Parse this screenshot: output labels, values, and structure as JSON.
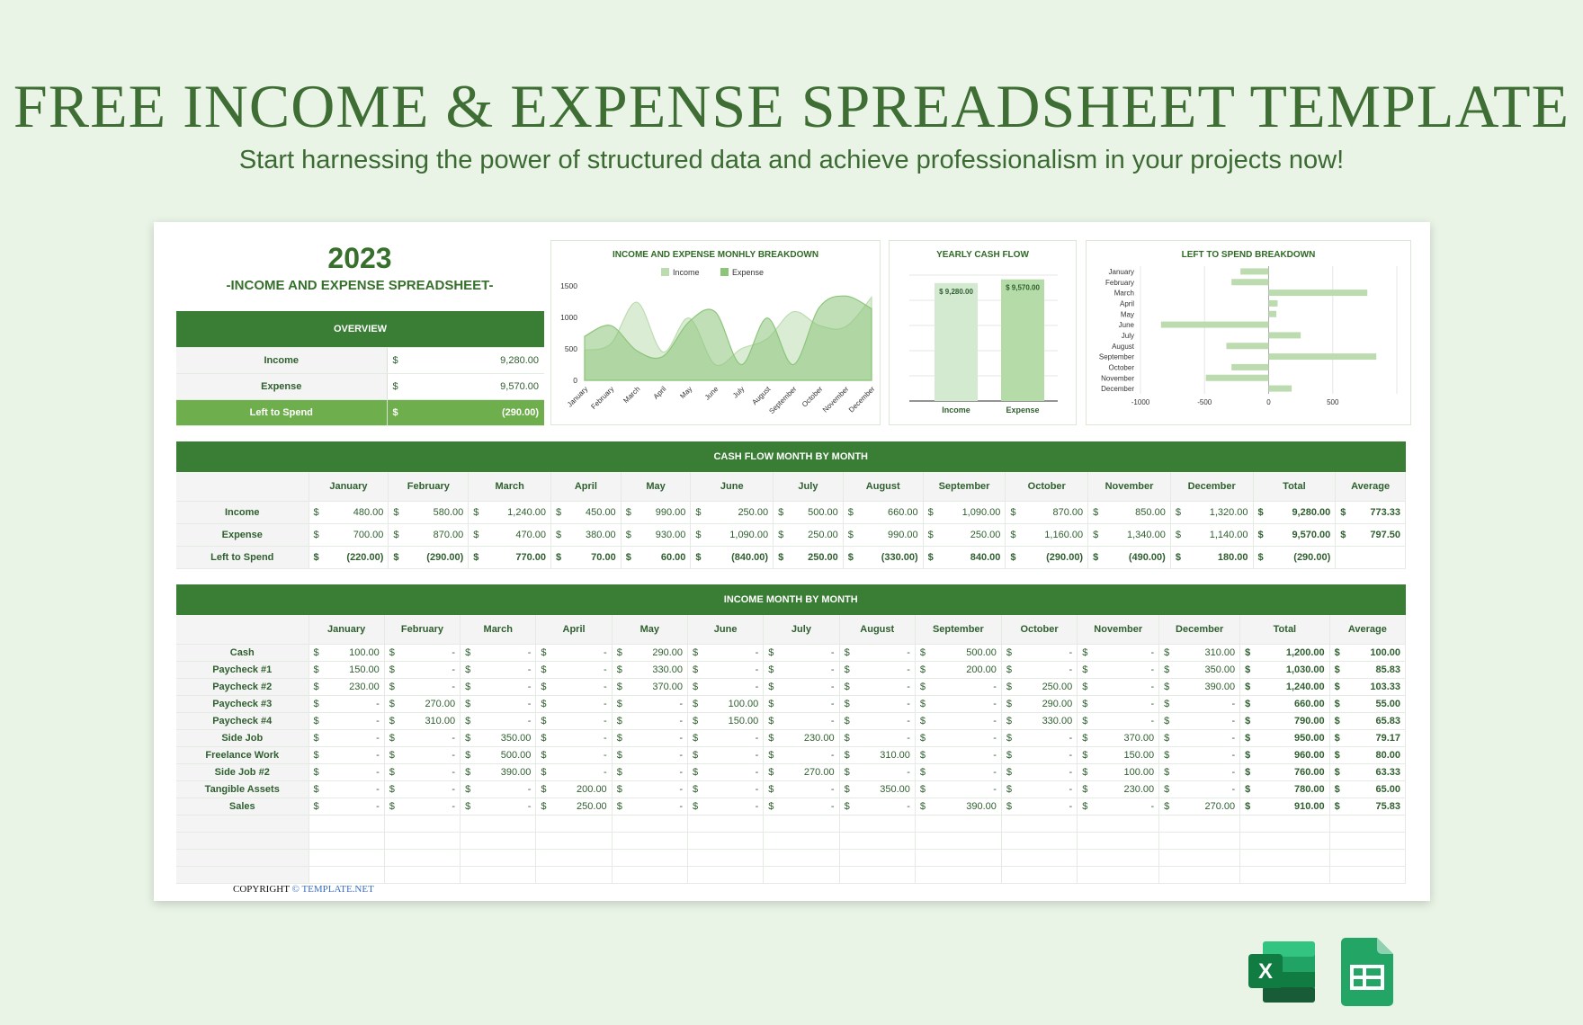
{
  "hero": {
    "title": "FREE INCOME & EXPENSE SPREADSHEET TEMPLATE",
    "subtitle": "Start harnessing the power of structured data and achieve professionalism in your projects now!"
  },
  "sheet": {
    "year": "2023",
    "subtitle": "-INCOME AND EXPENSE SPREADSHEET-",
    "overview": {
      "header": "OVERVIEW",
      "currency": "$",
      "rows": [
        {
          "label": "Income",
          "value": "9,280.00"
        },
        {
          "label": "Expense",
          "value": "9,570.00"
        },
        {
          "label": "Left to Spend",
          "value": "(290.00)"
        }
      ]
    },
    "copyright": {
      "prefix": "COPYRIGHT",
      "symbol": "©",
      "site": "TEMPLATE.NET"
    }
  },
  "months": [
    "January",
    "February",
    "March",
    "April",
    "May",
    "June",
    "July",
    "August",
    "September",
    "October",
    "November",
    "December"
  ],
  "cashflow": {
    "title": "CASH FLOW MONTH BY MONTH",
    "total_label": "Total",
    "avg_label": "Average",
    "rows": [
      {
        "label": "Income",
        "values": [
          "480.00",
          "580.00",
          "1,240.00",
          "450.00",
          "990.00",
          "250.00",
          "500.00",
          "660.00",
          "1,090.00",
          "870.00",
          "850.00",
          "1,320.00"
        ],
        "total": "9,280.00",
        "avg": "773.33"
      },
      {
        "label": "Expense",
        "values": [
          "700.00",
          "870.00",
          "470.00",
          "380.00",
          "930.00",
          "1,090.00",
          "250.00",
          "990.00",
          "250.00",
          "1,160.00",
          "1,340.00",
          "1,140.00"
        ],
        "total": "9,570.00",
        "avg": "797.50"
      },
      {
        "label": "Left to Spend",
        "values": [
          "(220.00)",
          "(290.00)",
          "770.00",
          "70.00",
          "60.00",
          "(840.00)",
          "250.00",
          "(330.00)",
          "840.00",
          "(290.00)",
          "(490.00)",
          "180.00"
        ],
        "total": "(290.00)",
        "avg": ""
      }
    ]
  },
  "income": {
    "title": "INCOME MONTH BY MONTH",
    "total_label": "Total",
    "avg_label": "Average",
    "rows": [
      {
        "label": "Cash",
        "values": [
          "100.00",
          "-",
          "-",
          "-",
          "290.00",
          "-",
          "-",
          "-",
          "500.00",
          "-",
          "-",
          "310.00"
        ],
        "total": "1,200.00",
        "avg": "100.00"
      },
      {
        "label": "Paycheck #1",
        "values": [
          "150.00",
          "-",
          "-",
          "-",
          "330.00",
          "-",
          "-",
          "-",
          "200.00",
          "-",
          "-",
          "350.00"
        ],
        "total": "1,030.00",
        "avg": "85.83"
      },
      {
        "label": "Paycheck #2",
        "values": [
          "230.00",
          "-",
          "-",
          "-",
          "370.00",
          "-",
          "-",
          "-",
          "-",
          "250.00",
          "-",
          "390.00"
        ],
        "total": "1,240.00",
        "avg": "103.33"
      },
      {
        "label": "Paycheck #3",
        "values": [
          "-",
          "270.00",
          "-",
          "-",
          "-",
          "100.00",
          "-",
          "-",
          "-",
          "290.00",
          "-",
          "-"
        ],
        "total": "660.00",
        "avg": "55.00"
      },
      {
        "label": "Paycheck #4",
        "values": [
          "-",
          "310.00",
          "-",
          "-",
          "-",
          "150.00",
          "-",
          "-",
          "-",
          "330.00",
          "-",
          "-"
        ],
        "total": "790.00",
        "avg": "65.83"
      },
      {
        "label": "Side Job",
        "values": [
          "-",
          "-",
          "350.00",
          "-",
          "-",
          "-",
          "230.00",
          "-",
          "-",
          "-",
          "370.00",
          "-"
        ],
        "total": "950.00",
        "avg": "79.17"
      },
      {
        "label": "Freelance Work",
        "values": [
          "-",
          "-",
          "500.00",
          "-",
          "-",
          "-",
          "-",
          "310.00",
          "-",
          "-",
          "150.00",
          "-"
        ],
        "total": "960.00",
        "avg": "80.00"
      },
      {
        "label": "Side Job #2",
        "values": [
          "-",
          "-",
          "390.00",
          "-",
          "-",
          "-",
          "270.00",
          "-",
          "-",
          "-",
          "100.00",
          "-"
        ],
        "total": "760.00",
        "avg": "63.33"
      },
      {
        "label": "Tangible Assets",
        "values": [
          "-",
          "-",
          "-",
          "200.00",
          "-",
          "-",
          "-",
          "350.00",
          "-",
          "-",
          "230.00",
          "-"
        ],
        "total": "780.00",
        "avg": "65.00"
      },
      {
        "label": "Sales",
        "values": [
          "-",
          "-",
          "-",
          "250.00",
          "-",
          "-",
          "-",
          "-",
          "390.00",
          "-",
          "-",
          "270.00"
        ],
        "total": "910.00",
        "avg": "75.83"
      }
    ]
  },
  "chart_data": [
    {
      "type": "area",
      "title": "INCOME AND EXPENSE MONHLY BREAKDOWN",
      "categories": [
        "January",
        "February",
        "March",
        "April",
        "May",
        "June",
        "July",
        "August",
        "September",
        "October",
        "November",
        "December"
      ],
      "series": [
        {
          "name": "Income",
          "values": [
            480,
            580,
            1240,
            450,
            990,
            250,
            500,
            660,
            1090,
            870,
            850,
            1320
          ],
          "color": "#bcdcb0"
        },
        {
          "name": "Expense",
          "values": [
            700,
            870,
            470,
            380,
            930,
            1090,
            250,
            990,
            250,
            1160,
            1340,
            1140
          ],
          "color": "#8cc57a"
        }
      ],
      "ylim": [
        0,
        1500
      ],
      "yticks": [
        "0",
        "500",
        "1000",
        "1500"
      ],
      "legend": "top"
    },
    {
      "type": "bar",
      "title": "YEARLY CASH FLOW",
      "categories": [
        "Income",
        "Expense"
      ],
      "values": [
        9280,
        9570
      ],
      "labels": [
        "$ 9,280.00",
        "$ 9,570.00"
      ],
      "colors": [
        "#d4ead0",
        "#b4dba8"
      ]
    },
    {
      "type": "bar",
      "orientation": "horizontal",
      "title": "LEFT TO SPEND BREAKDOWN",
      "categories": [
        "January",
        "February",
        "March",
        "April",
        "May",
        "June",
        "July",
        "August",
        "September",
        "October",
        "November",
        "December"
      ],
      "values": [
        -220,
        -290,
        770,
        70,
        60,
        -840,
        250,
        -330,
        840,
        -290,
        -490,
        180
      ],
      "xticks": [
        "-1000",
        "-500",
        "0",
        "500"
      ],
      "xlim": [
        -1000,
        1000
      ],
      "color": "#bcdcb0"
    }
  ],
  "icons": {
    "excel": "excel-icon",
    "sheets": "google-sheets-icon"
  },
  "colors": {
    "primary": "#3a7d34",
    "accent": "#6fae4c",
    "background": "#e9f4e6"
  }
}
